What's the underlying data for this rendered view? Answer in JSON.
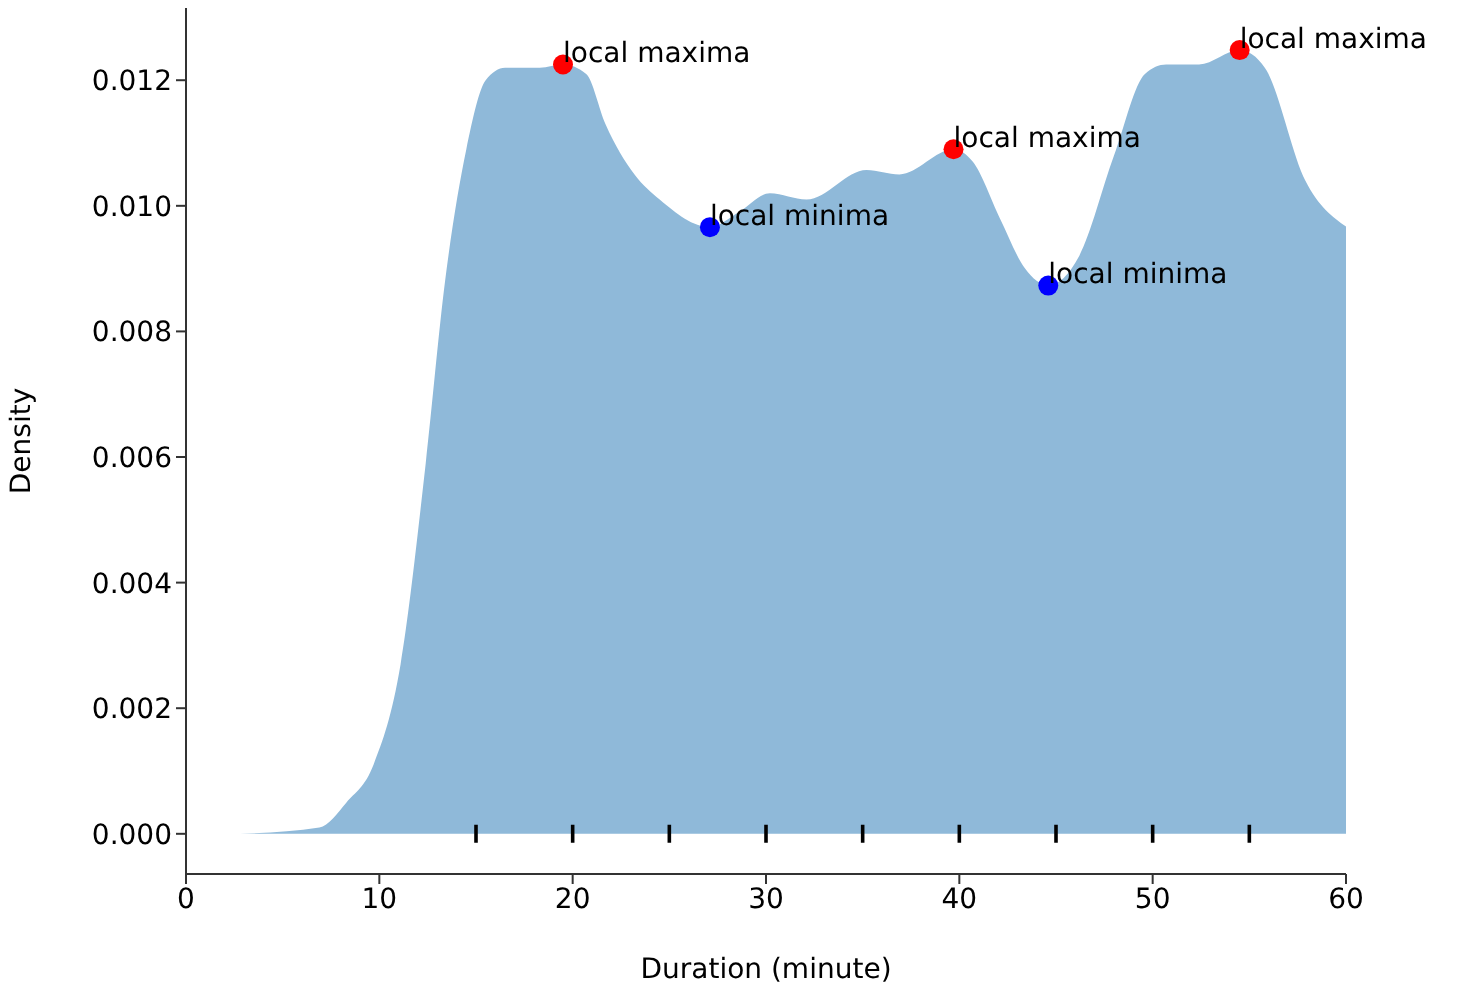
{
  "chart_data": {
    "type": "area",
    "xlabel": "Duration (minute)",
    "ylabel": "Density",
    "xlim": [
      0,
      60
    ],
    "xticks": [
      0,
      10,
      20,
      30,
      40,
      50,
      60
    ],
    "ylim": [
      -0.00064,
      0.01315
    ],
    "yticks": [
      {
        "value": 0,
        "label": "0.000"
      },
      {
        "value": 0.002,
        "label": "0.002"
      },
      {
        "value": 0.004,
        "label": "0.004"
      },
      {
        "value": 0.006,
        "label": "0.006"
      },
      {
        "value": 0.008,
        "label": "0.008"
      },
      {
        "value": 0.01,
        "label": "0.010"
      },
      {
        "value": 0.012,
        "label": "0.012"
      }
    ],
    "grid": false,
    "legend": false,
    "series": [
      {
        "color": "#8fb9d9",
        "x": [
          2.8,
          6.9,
          8.3,
          9.7,
          11.1,
          12.4,
          13.4,
          14.5,
          15.5,
          16.5,
          18.3,
          19.5,
          20.7,
          21.7,
          23.2,
          24.5,
          27.1,
          28.6,
          30.2,
          32.1,
          35.2,
          36.9,
          39.7,
          40.7,
          42.1,
          43.4,
          44.6,
          46.2,
          48.0,
          49.6,
          50.7,
          52.4,
          54.5,
          55.8,
          57.9,
          60
        ],
        "values": [
          0,
          0.0001,
          0.0005,
          0.0011,
          0.0027,
          0.0059,
          0.0088,
          0.0109,
          0.012,
          0.0122,
          0.0122,
          0.01225,
          0.0121,
          0.0113,
          0.0105,
          0.0101,
          0.00966,
          0.0099,
          0.0102,
          0.0101,
          0.01057,
          0.0105,
          0.0109,
          0.0107,
          0.0098,
          0.009,
          0.00873,
          0.0092,
          0.0108,
          0.0121,
          0.01225,
          0.01225,
          0.01248,
          0.0122,
          0.0104,
          0.00967
        ]
      },
      {
        "type": "scatter",
        "color": "#000000",
        "x": [
          15,
          20,
          25,
          30,
          35,
          40,
          45,
          50,
          55
        ],
        "values": [
          0,
          0,
          0,
          0,
          0,
          0,
          0,
          0,
          0
        ]
      },
      {
        "type": "scatter",
        "marker": "circle",
        "color": "#ff0000",
        "x": [
          19.5,
          39.7,
          54.5
        ],
        "values": [
          0.01225,
          0.0109,
          0.01248
        ]
      },
      {
        "type": "scatter",
        "marker": "circle",
        "color": "#0000ff",
        "x": [
          27.1,
          44.6
        ],
        "values": [
          0.00966,
          0.00873
        ]
      }
    ],
    "annotations": [
      {
        "text": "local maxima",
        "x": 19.5,
        "y": 0.01225
      },
      {
        "text": "local minima",
        "x": 27.1,
        "y": 0.00966
      },
      {
        "text": "local maxima",
        "x": 39.7,
        "y": 0.0109
      },
      {
        "text": "local minima",
        "x": 44.6,
        "y": 0.00873
      },
      {
        "text": "local maxima",
        "x": 54.5,
        "y": 0.01248
      }
    ]
  }
}
